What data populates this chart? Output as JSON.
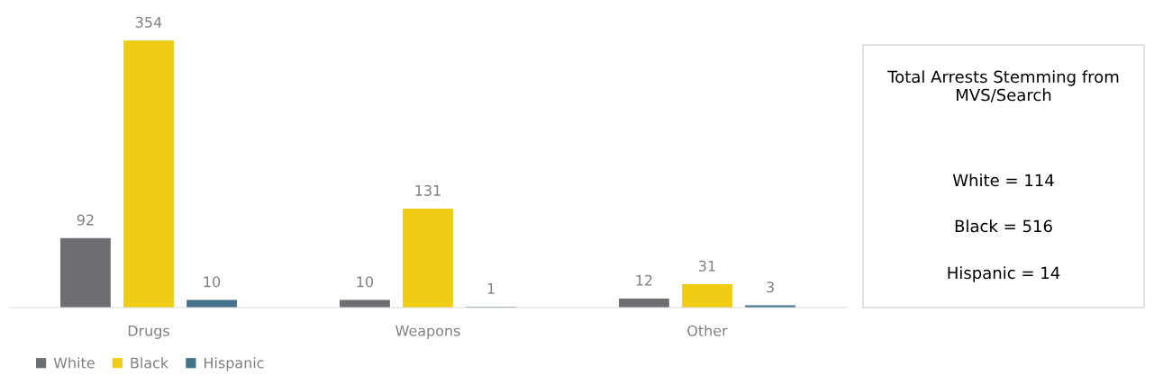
{
  "chart_data": {
    "type": "bar",
    "categories": [
      "Drugs",
      "Weapons",
      "Other"
    ],
    "series": [
      {
        "name": "White",
        "color": "#6d6e71",
        "values": [
          92,
          10,
          12
        ]
      },
      {
        "name": "Black",
        "color": "#f0cd14",
        "values": [
          354,
          131,
          31
        ]
      },
      {
        "name": "Hispanic",
        "color": "#44738a",
        "values": [
          10,
          1,
          3
        ]
      }
    ],
    "data_labels": true,
    "legend": "bottom left",
    "grid": false,
    "annotations": [
      "Total Arrests Stemming from MVS/Search",
      "White = 114",
      "Black = 516",
      "Hispanic = 14"
    ]
  }
}
